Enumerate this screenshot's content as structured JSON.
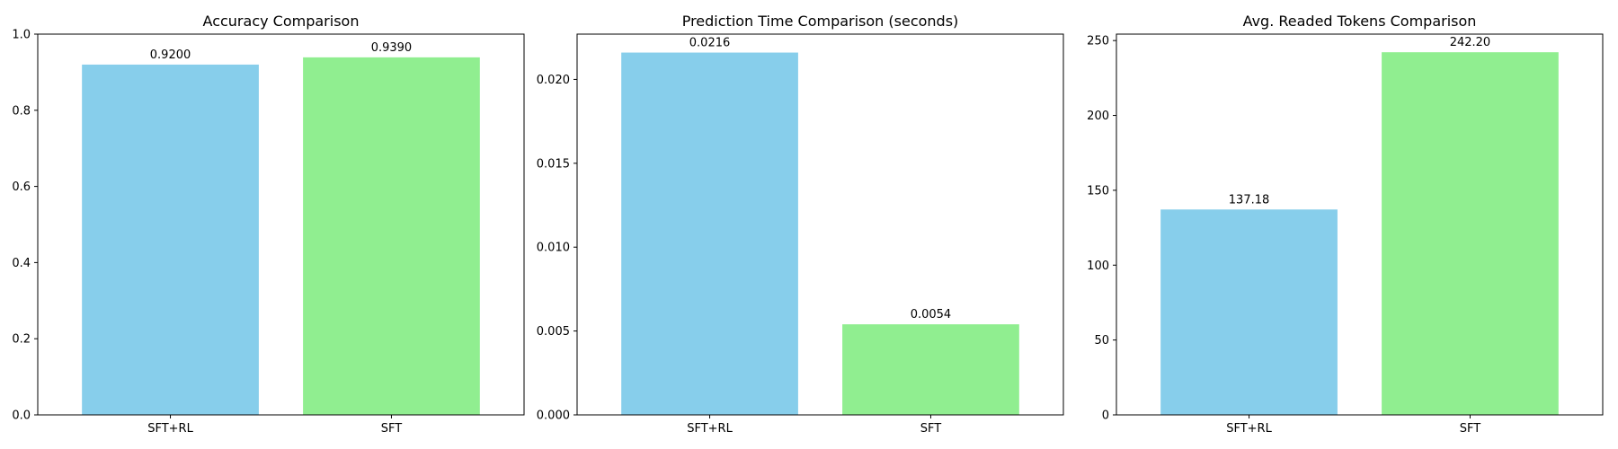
{
  "chart_data": [
    {
      "type": "bar",
      "title": "Accuracy Comparison",
      "categories": [
        "SFT+RL",
        "SFT"
      ],
      "values": [
        0.92,
        0.939
      ],
      "data_labels": [
        "0.9200",
        "0.9390"
      ],
      "colors": [
        "#87CEEB",
        "#90EE90"
      ],
      "ylim": [
        0,
        1.0
      ],
      "yticks": [
        0.0,
        0.2,
        0.4,
        0.6,
        0.8,
        1.0
      ],
      "ytick_labels": [
        "0.0",
        "0.2",
        "0.4",
        "0.6",
        "0.8",
        "1.0"
      ],
      "grid": false,
      "xlabel": "",
      "ylabel": ""
    },
    {
      "type": "bar",
      "title": "Prediction Time Comparison (seconds)",
      "categories": [
        "SFT+RL",
        "SFT"
      ],
      "values": [
        0.0216,
        0.0054
      ],
      "data_labels": [
        "0.0216",
        "0.0054"
      ],
      "colors": [
        "#87CEEB",
        "#90EE90"
      ],
      "ylim": [
        0,
        0.0227
      ],
      "yticks": [
        0.0,
        0.005,
        0.01,
        0.015,
        0.02
      ],
      "ytick_labels": [
        "0.000",
        "0.005",
        "0.010",
        "0.015",
        "0.020"
      ],
      "grid": false,
      "xlabel": "",
      "ylabel": ""
    },
    {
      "type": "bar",
      "title": "Avg. Readed Tokens Comparison",
      "categories": [
        "SFT+RL",
        "SFT"
      ],
      "values": [
        137.18,
        242.2
      ],
      "data_labels": [
        "137.18",
        "242.20"
      ],
      "colors": [
        "#87CEEB",
        "#90EE90"
      ],
      "ylim": [
        0,
        254.3
      ],
      "yticks": [
        0,
        50,
        100,
        150,
        200,
        250
      ],
      "ytick_labels": [
        "0",
        "50",
        "100",
        "150",
        "200",
        "250"
      ],
      "grid": false,
      "xlabel": "",
      "ylabel": ""
    }
  ]
}
